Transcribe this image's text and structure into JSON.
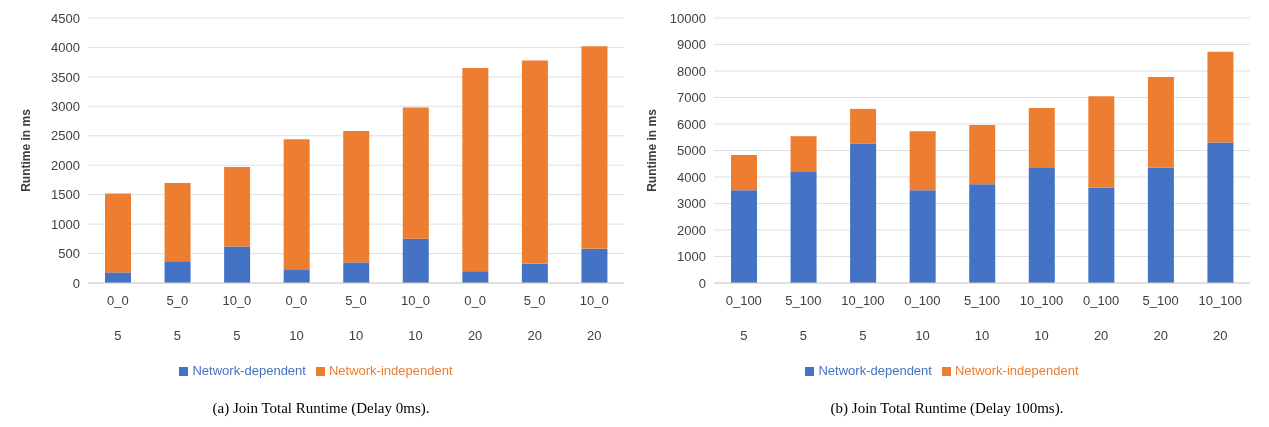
{
  "chart_data": [
    {
      "type": "bar",
      "title": "(a) Join Total Runtime (Delay 0ms).",
      "ylabel": "Runtime in ms",
      "stacked": true,
      "categories": [
        "0_0\n5",
        "5_0\n5",
        "10_0\n5",
        "0_0\n10",
        "5_0\n10",
        "10_0\n10",
        "0_0\n20",
        "5_0\n20",
        "10_0\n20"
      ],
      "series": [
        {
          "name": "Network-dependent",
          "color": "#4472c4",
          "values": [
            180,
            370,
            620,
            220,
            350,
            750,
            200,
            330,
            580
          ]
        },
        {
          "name": "Network-independent",
          "color": "#ed7d31",
          "values": [
            1340,
            1330,
            1350,
            2220,
            2230,
            2230,
            3450,
            3450,
            3440
          ]
        }
      ],
      "ylim": [
        0,
        4500
      ],
      "yticks": [
        0,
        500,
        1000,
        1500,
        2000,
        2500,
        3000,
        3500,
        4000,
        4500
      ],
      "grid": "y",
      "legend": "bottom"
    },
    {
      "type": "bar",
      "title": "(b) Join Total Runtime (Delay 100ms).",
      "ylabel": "Runtime in ms",
      "stacked": true,
      "categories": [
        "0_100\n5",
        "5_100\n5",
        "10_100\n5",
        "0_100\n10",
        "5_100\n10",
        "10_100\n10",
        "0_100\n20",
        "5_100\n20",
        "10_100\n20"
      ],
      "series": [
        {
          "name": "Network-dependent",
          "color": "#4472c4",
          "values": [
            3500,
            4220,
            5250,
            3500,
            3730,
            4370,
            3600,
            4350,
            5300
          ]
        },
        {
          "name": "Network-independent",
          "color": "#ed7d31",
          "values": [
            1330,
            1320,
            1320,
            2230,
            2230,
            2230,
            3450,
            3420,
            3430
          ]
        }
      ],
      "ylim": [
        0,
        10000
      ],
      "yticks": [
        0,
        1000,
        2000,
        3000,
        4000,
        5000,
        6000,
        7000,
        8000,
        9000,
        10000
      ],
      "grid": "y",
      "legend": "bottom"
    }
  ]
}
